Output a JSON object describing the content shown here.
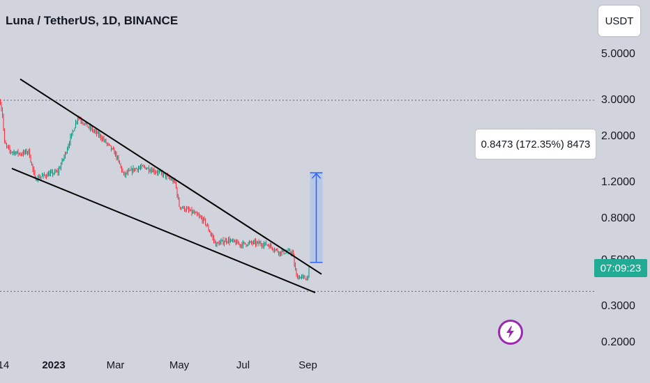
{
  "header": {
    "title": "Luna / TetherUS, 1D, BINANCE"
  },
  "currency_button": {
    "label": "USDT"
  },
  "current_price_tag": {
    "label": "07:09:23",
    "color": "#22ab94"
  },
  "measure_tool": {
    "label": "0.8473 (172.35%) 8473",
    "fill": "#b2c4ea",
    "stroke": "#2962ff"
  },
  "chart_data": {
    "type": "candlestick",
    "title": "Luna / TetherUS, 1D, BINANCE",
    "y_scale": "log",
    "yticks": [
      "5.0000",
      "3.0000",
      "2.0000",
      "1.2000",
      "0.8000",
      "0.5000",
      "0.3000",
      "0.2000"
    ],
    "xticks": [
      "14",
      "2023",
      "Mar",
      "May",
      "Jul",
      "Sep"
    ],
    "up_color": "#089981",
    "down_color": "#f23645",
    "price_path": [
      [
        "2022-11-11",
        2.95
      ],
      [
        "2022-11-13",
        2.55
      ],
      [
        "2022-11-15",
        1.85
      ],
      [
        "2022-11-20",
        1.7
      ],
      [
        "2022-12-01",
        1.65
      ],
      [
        "2022-12-08",
        1.7
      ],
      [
        "2022-12-14",
        1.25
      ],
      [
        "2022-12-24",
        1.3
      ],
      [
        "2023-01-05",
        1.35
      ],
      [
        "2023-01-12",
        1.65
      ],
      [
        "2023-01-24",
        2.5
      ],
      [
        "2023-02-02",
        2.25
      ],
      [
        "2023-02-15",
        2.0
      ],
      [
        "2023-03-01",
        1.65
      ],
      [
        "2023-03-09",
        1.3
      ],
      [
        "2023-03-20",
        1.4
      ],
      [
        "2023-03-29",
        1.42
      ],
      [
        "2023-04-15",
        1.32
      ],
      [
        "2023-04-27",
        1.2
      ],
      [
        "2023-05-01",
        0.92
      ],
      [
        "2023-05-15",
        0.85
      ],
      [
        "2023-05-25",
        0.78
      ],
      [
        "2023-06-05",
        0.6
      ],
      [
        "2023-06-16",
        0.63
      ],
      [
        "2023-06-28",
        0.6
      ],
      [
        "2023-07-10",
        0.61
      ],
      [
        "2023-07-24",
        0.6
      ],
      [
        "2023-08-05",
        0.55
      ],
      [
        "2023-08-17",
        0.55
      ],
      [
        "2023-08-21",
        0.42
      ],
      [
        "2023-08-31",
        0.41
      ],
      [
        "2023-09-02",
        0.46
      ]
    ],
    "trendlines": [
      {
        "name": "upper",
        "start": [
          "2022-11-30",
          3.8
        ],
        "end": [
          "2023-09-14",
          0.43
        ]
      },
      {
        "name": "lower",
        "start": [
          "2022-11-22",
          1.4
        ],
        "end": [
          "2023-09-08",
          0.35
        ]
      }
    ],
    "horizontal_lines": [
      3.0,
      0.355
    ],
    "current_price_label": "07:09:23",
    "measure": {
      "from_date": "2023-09-03",
      "to_date": "2023-09-15",
      "from_price": 0.49,
      "to_price": 1.334,
      "label": "0.8473 (172.35%) 8473"
    }
  }
}
